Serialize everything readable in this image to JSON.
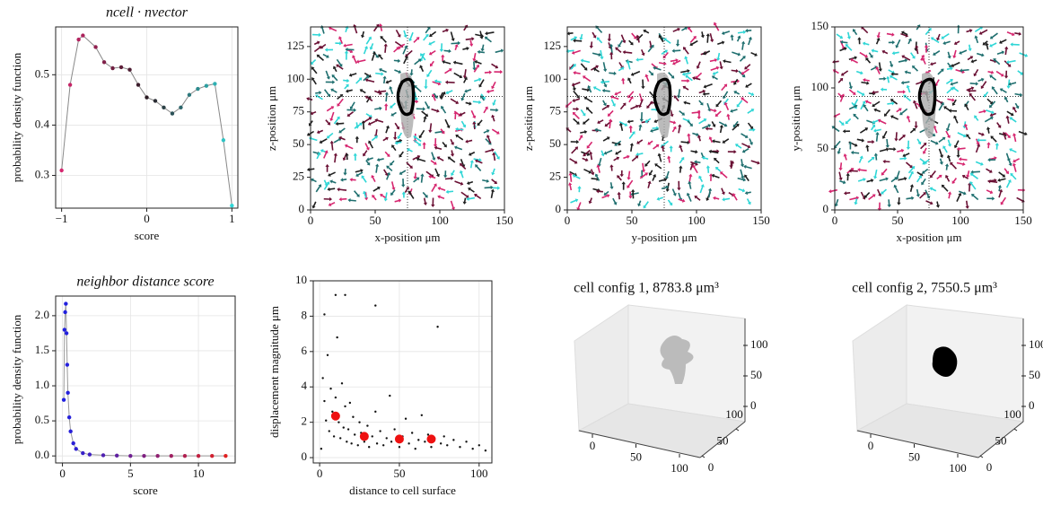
{
  "chart_data": [
    {
      "type": "line",
      "title": "ncell · nvector",
      "xlabel": "score",
      "ylabel": "probability density function",
      "xlim": [
        -1.07,
        1.07
      ],
      "ylim": [
        0.235,
        0.595
      ],
      "xticks": [
        {
          "value": -1,
          "label": "−1"
        },
        0,
        1
      ],
      "yticks": [
        0.3,
        0.4,
        0.5
      ],
      "grid": true,
      "line_color": "#888888",
      "colors": [
        "#d6266f",
        "#2a1a22",
        "#2fd6d6"
      ],
      "series": [
        {
          "x": [
            -1,
            -0.9,
            -0.8,
            -0.75,
            -0.6,
            -0.5,
            -0.4,
            -0.3,
            -0.2,
            -0.1,
            0,
            0.1,
            0.2,
            0.3,
            0.4,
            0.5,
            0.6,
            0.7,
            0.8,
            0.9,
            1
          ],
          "values": [
            0.31,
            0.48,
            0.57,
            0.578,
            0.555,
            0.525,
            0.513,
            0.515,
            0.51,
            0.48,
            0.455,
            0.448,
            0.435,
            0.423,
            0.435,
            0.46,
            0.472,
            0.478,
            0.482,
            0.37,
            0.24
          ]
        }
      ]
    },
    {
      "type": "quiver",
      "xlabel": "x-position μm",
      "ylabel": "z-position μm",
      "xlim": [
        0,
        150
      ],
      "ylim": [
        0,
        140
      ],
      "xticks": [
        0,
        50,
        100,
        150
      ],
      "yticks": [
        0,
        25,
        50,
        75,
        100,
        125
      ],
      "colors": [
        "#d6266f",
        "#1f1f1f",
        "#2fd6d6",
        "#1f6f6f",
        "#6a1034"
      ]
    },
    {
      "type": "quiver",
      "xlabel": "y-position μm",
      "ylabel": "z-position μm",
      "xlim": [
        0,
        150
      ],
      "ylim": [
        0,
        140
      ],
      "xticks": [
        0,
        50,
        100,
        150
      ],
      "yticks": [
        0,
        25,
        50,
        75,
        100,
        125
      ],
      "colors": [
        "#d6266f",
        "#1f1f1f",
        "#2fd6d6",
        "#1f6f6f",
        "#6a1034"
      ]
    },
    {
      "type": "quiver",
      "xlabel": "x-position μm",
      "ylabel": "y-position μm",
      "xlim": [
        0,
        150
      ],
      "ylim": [
        0,
        150
      ],
      "xticks": [
        0,
        50,
        100,
        150
      ],
      "yticks": [
        0,
        50,
        100,
        150
      ],
      "colors": [
        "#d6266f",
        "#1f1f1f",
        "#2fd6d6",
        "#1f6f6f",
        "#6a1034"
      ]
    },
    {
      "type": "line",
      "title": "neighbor distance score",
      "xlabel": "score",
      "ylabel": "probability density function",
      "xlim": [
        -0.5,
        12.7
      ],
      "ylim": [
        -0.1,
        2.28
      ],
      "xticks": [
        0,
        5,
        10
      ],
      "yticks": [
        {
          "value": 0,
          "label": "0.0"
        },
        0.5,
        {
          "value": 1,
          "label": "1.0"
        },
        1.5,
        {
          "value": 2,
          "label": "2.0"
        }
      ],
      "grid": true,
      "line_color": "#999999",
      "colors": [
        "#2020e0",
        "#e02020"
      ],
      "series": [
        {
          "x": [
            0.1,
            0.15,
            0.2,
            0.25,
            0.3,
            0.35,
            0.4,
            0.5,
            0.6,
            0.8,
            1,
            1.5,
            2,
            3,
            4,
            5,
            6,
            7,
            8,
            9,
            10,
            11,
            12
          ],
          "values": [
            0.8,
            1.8,
            2.05,
            2.17,
            1.75,
            1.3,
            0.9,
            0.55,
            0.35,
            0.18,
            0.1,
            0.04,
            0.02,
            0.01,
            0.005,
            0,
            0,
            0,
            0,
            0,
            0,
            0,
            0
          ]
        }
      ]
    },
    {
      "type": "scatter",
      "xlabel": "distance to cell surface",
      "ylabel": "displacement magnitude μm",
      "xlim": [
        -4,
        108
      ],
      "ylim": [
        -0.3,
        10
      ],
      "xticks": [
        0,
        50,
        100
      ],
      "yticks": [
        0,
        2,
        4,
        6,
        8,
        10
      ],
      "grid": true,
      "series": [
        {
          "color": "#111111",
          "size": 1.2,
          "x": [
            2,
            3,
            4,
            5,
            6,
            7,
            8,
            9,
            10,
            11,
            12,
            13,
            14,
            15,
            16,
            17,
            18,
            19,
            20,
            21,
            22,
            24,
            25,
            26,
            28,
            30,
            31,
            33,
            35,
            36,
            38,
            40,
            42,
            44,
            45,
            47,
            50,
            52,
            54,
            56,
            58,
            60,
            62,
            64,
            66,
            68,
            70,
            72,
            74,
            76,
            78,
            80,
            84,
            88,
            92,
            96,
            100,
            104,
            3,
            10,
            16,
            35,
            1
          ],
          "values": [
            4.5,
            3.2,
            2.1,
            5.8,
            1.5,
            3.9,
            2.6,
            1.2,
            3.4,
            6.8,
            2.0,
            1.1,
            4.2,
            1.7,
            2.9,
            0.9,
            1.6,
            3.1,
            0.8,
            2.3,
            1.3,
            0.7,
            2.0,
            1.4,
            0.9,
            1.8,
            0.6,
            1.2,
            2.6,
            0.8,
            1.5,
            0.7,
            1.1,
            3.5,
            0.9,
            1.6,
            0.6,
            1.2,
            2.2,
            0.8,
            1.4,
            0.5,
            1.0,
            2.4,
            0.9,
            1.3,
            0.6,
            1.1,
            7.4,
            0.8,
            1.2,
            0.7,
            1.0,
            0.6,
            0.9,
            0.5,
            0.7,
            0.4,
            8.1,
            9.2,
            9.2,
            8.6,
            0.5
          ]
        },
        {
          "color": "#ee1111",
          "size": 5,
          "x": [
            10,
            28,
            50,
            70
          ],
          "values": [
            2.35,
            1.2,
            1.05,
            1.05
          ]
        }
      ]
    },
    {
      "type": "surface3d",
      "title": "cell config 1, 8783.8 μm³",
      "color": "#bbbbbb",
      "xticks": [
        0,
        50,
        100
      ],
      "yticks": [
        0,
        50,
        100
      ],
      "zticks": [
        0,
        50,
        100
      ]
    },
    {
      "type": "surface3d",
      "title": "cell config 2, 7550.5 μm³",
      "color": "#000000",
      "xticks": [
        0,
        50,
        100
      ],
      "yticks": [
        0,
        50,
        100
      ],
      "zticks": [
        0,
        50,
        100
      ]
    }
  ]
}
